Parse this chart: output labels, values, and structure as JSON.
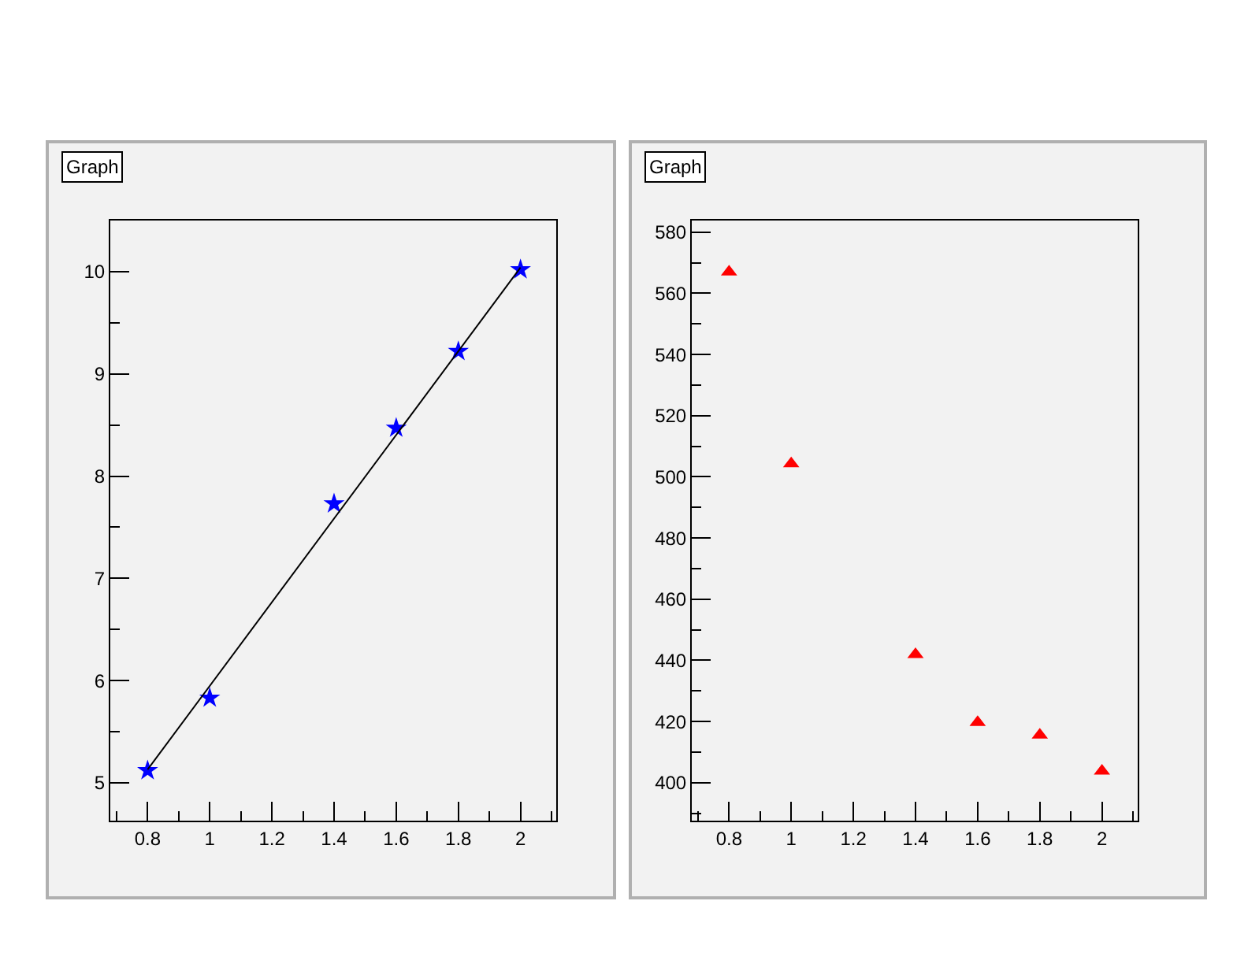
{
  "chart_data": [
    {
      "type": "scatter",
      "title": "Graph",
      "xlim": [
        0.68,
        2.115
      ],
      "ylim": [
        4.63,
        10.5
      ],
      "xticks": [
        0.8,
        1,
        1.2,
        1.4,
        1.6,
        1.8,
        2
      ],
      "yticks": [
        5,
        6,
        7,
        8,
        9,
        10
      ],
      "grid": false,
      "series": [
        {
          "marker": "star",
          "color": "#0000ff",
          "x": [
            0.8,
            1.0,
            1.4,
            1.6,
            1.8,
            2.0
          ],
          "values": [
            5.12,
            5.83,
            7.73,
            8.47,
            9.22,
            10.02
          ]
        },
        {
          "type": "line",
          "marker": "none",
          "line_style": "solid",
          "color": "#000000",
          "x": [
            0.8,
            2.0
          ],
          "values": [
            5.13,
            10.04
          ]
        }
      ]
    },
    {
      "type": "scatter",
      "title": "Graph",
      "xlim": [
        0.68,
        2.115
      ],
      "ylim": [
        387.6,
        583.8
      ],
      "xticks": [
        0.8,
        1,
        1.2,
        1.4,
        1.6,
        1.8,
        2
      ],
      "yticks": [
        400,
        420,
        440,
        460,
        480,
        500,
        520,
        540,
        560,
        580
      ],
      "grid": false,
      "series": [
        {
          "marker": "triangle",
          "color": "#ff0000",
          "x": [
            0.8,
            1.0,
            1.4,
            1.6,
            1.8,
            2.0
          ],
          "values": [
            567,
            504.3,
            441.9,
            419.7,
            415.6,
            403.8
          ]
        }
      ]
    }
  ]
}
